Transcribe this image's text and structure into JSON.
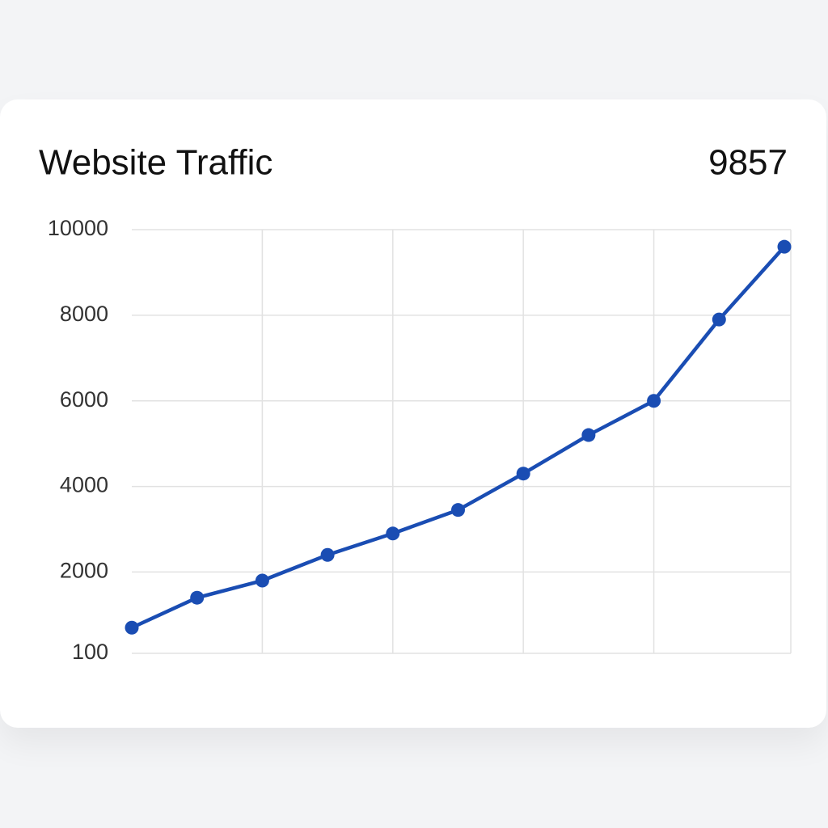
{
  "chart_data": {
    "type": "line",
    "title": "Website Traffic",
    "value": "9857",
    "categories": [
      null,
      null,
      null,
      null,
      null,
      null,
      null,
      null,
      null,
      null,
      null
    ],
    "values": [
      700,
      1400,
      1800,
      2400,
      2900,
      3450,
      4300,
      5200,
      6000,
      7900,
      9600
    ],
    "color": "#1a4db3",
    "ylim": [
      100,
      10000
    ],
    "yticks": [
      100,
      2000,
      4000,
      6000,
      8000,
      10000
    ],
    "grid": true
  }
}
